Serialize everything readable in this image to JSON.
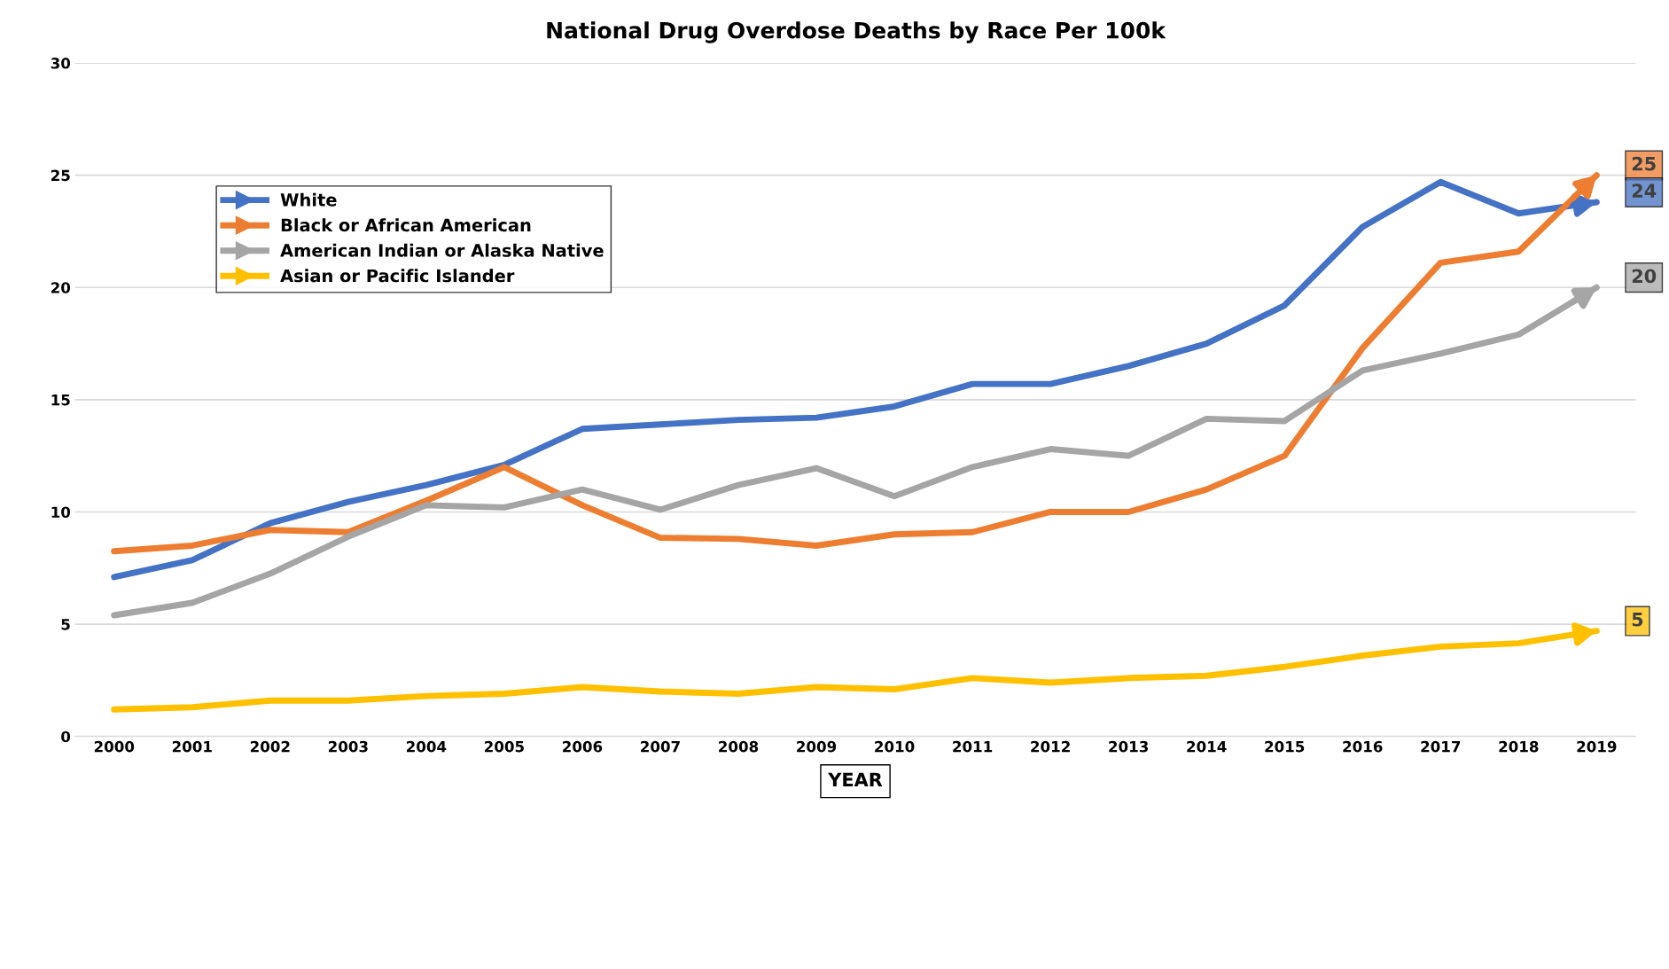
{
  "chart_data": {
    "type": "line",
    "title": "National Drug Overdose Deaths by Race Per 100k",
    "xlabel": "YEAR",
    "categories": [
      "2000",
      "2001",
      "2002",
      "2003",
      "2004",
      "2005",
      "2006",
      "2007",
      "2008",
      "2009",
      "2010",
      "2011",
      "2012",
      "2013",
      "2014",
      "2015",
      "2016",
      "2017",
      "2018",
      "2019"
    ],
    "series": [
      {
        "name": "White",
        "color": "#4472c4",
        "values": [
          7.1,
          7.85,
          9.5,
          10.45,
          11.2,
          12.1,
          13.7,
          13.9,
          14.1,
          14.2,
          14.7,
          15.7,
          15.7,
          16.5,
          17.5,
          19.2,
          22.7,
          24.7,
          23.3,
          23.8
        ]
      },
      {
        "name": "Black or African American",
        "color": "#ed7d31",
        "values": [
          8.25,
          8.5,
          9.2,
          9.1,
          10.5,
          12.0,
          10.3,
          8.85,
          8.8,
          8.5,
          9.0,
          9.1,
          10.0,
          10.0,
          11.0,
          12.5,
          17.3,
          21.1,
          21.6,
          25.0
        ]
      },
      {
        "name": "American Indian or Alaska Native",
        "color": "#a5a5a5",
        "values": [
          5.4,
          5.95,
          7.25,
          8.9,
          10.3,
          10.2,
          11.0,
          10.1,
          11.2,
          11.95,
          10.7,
          12.0,
          12.8,
          12.5,
          14.15,
          14.05,
          16.3,
          17.05,
          17.9,
          20.0
        ]
      },
      {
        "name": "Asian or Pacific Islander",
        "color": "#ffc000",
        "values": [
          1.2,
          1.3,
          1.6,
          1.6,
          1.8,
          1.9,
          2.2,
          2.0,
          1.9,
          2.2,
          2.1,
          2.6,
          2.4,
          2.6,
          2.7,
          3.1,
          3.6,
          4.0,
          4.15,
          4.7
        ]
      }
    ],
    "annotations": [
      {
        "text": "25",
        "x": "2019",
        "y": 25.0
      },
      {
        "text": "24",
        "x": "2019",
        "y": 23.8
      },
      {
        "text": "20",
        "x": "2019",
        "y": 20.0
      },
      {
        "text": "5",
        "x": "2019",
        "y": 4.7
      }
    ],
    "ylim": [
      0,
      30
    ],
    "yticks": [
      0,
      5,
      10,
      15,
      20,
      25,
      30
    ],
    "grid": "y",
    "legend": "top left",
    "line_style": "solid",
    "marker": "none"
  }
}
